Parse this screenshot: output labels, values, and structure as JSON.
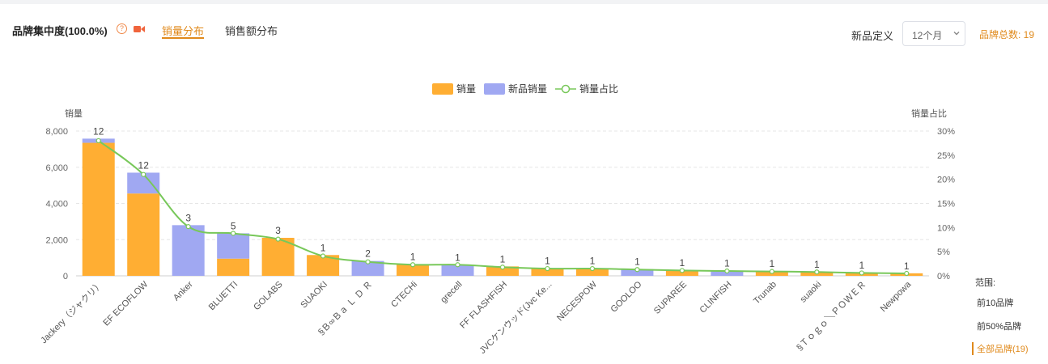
{
  "header": {
    "title": "品牌集中度(100.0%)",
    "help_icon": "question-circle-icon",
    "video_icon": "video-camera-icon",
    "tabs": [
      {
        "label": "销量分布",
        "active": true
      },
      {
        "label": "销售额分布",
        "active": false
      }
    ],
    "new_product_label": "新品定义",
    "new_product_select": "12个月",
    "brand_total": "品牌总数: 19"
  },
  "range": {
    "title": "范围:",
    "options": [
      "前10品牌",
      "前50%品牌",
      "全部品牌(19)"
    ],
    "active": "全部品牌(19)"
  },
  "colors": {
    "accent": "#e08a1c",
    "sales": "#ffae33",
    "new_sales": "#a0a8f2",
    "ratio_line": "#78c85a"
  },
  "chart_data": {
    "type": "bar",
    "stacked": true,
    "legend_position": "top-center",
    "ylabel": "销量",
    "y2label": "销量占比",
    "ylim": [
      0,
      8000
    ],
    "yticks": [
      "0",
      "2,000",
      "4,000",
      "6,000",
      "8,000"
    ],
    "y2lim": [
      0,
      30
    ],
    "y2ticks": [
      "0%",
      "5%",
      "10%",
      "15%",
      "20%",
      "25%",
      "30%"
    ],
    "grid": true,
    "categories": [
      "Jackery（ジャクリ）",
      "EF ECOFLOW",
      "Anker",
      "BLUETTI",
      "GOLABS",
      "SUAOKI",
      "§Ｂ∞Ｂａ Ｌ Ｄ Ｒ",
      "CTECHi",
      "grecell",
      "FF FLASHFISH",
      "JVCケンウッド(Jvc Ke...",
      "NECESPOW",
      "GOOLOO",
      "SUPAREE",
      "CLINFISH",
      "Trunab",
      "suaoki",
      "§Ｔｏｇｏ＼ＰＯＷＥＲ",
      "Newpowa"
    ],
    "series": [
      {
        "name": "销量",
        "values": [
          7350,
          4550,
          0,
          950,
          2100,
          1150,
          0,
          650,
          0,
          520,
          420,
          420,
          0,
          310,
          0,
          260,
          220,
          170,
          140
        ]
      },
      {
        "name": "新品销量",
        "values": [
          230,
          1150,
          2800,
          1400,
          0,
          0,
          820,
          0,
          610,
          0,
          0,
          0,
          370,
          0,
          290,
          0,
          0,
          0,
          0
        ]
      },
      {
        "name": "销量占比",
        "axis": "right",
        "values": [
          28.0,
          21.0,
          10.2,
          8.8,
          7.6,
          4.1,
          2.9,
          2.3,
          2.3,
          1.8,
          1.5,
          1.5,
          1.3,
          1.1,
          1.0,
          0.9,
          0.8,
          0.6,
          0.5
        ]
      }
    ],
    "data_labels": [
      "12",
      "12",
      "3",
      "5",
      "3",
      "1",
      "2",
      "1",
      "1",
      "1",
      "1",
      "1",
      "1",
      "1",
      "1",
      "1",
      "1",
      "1",
      "1"
    ]
  }
}
